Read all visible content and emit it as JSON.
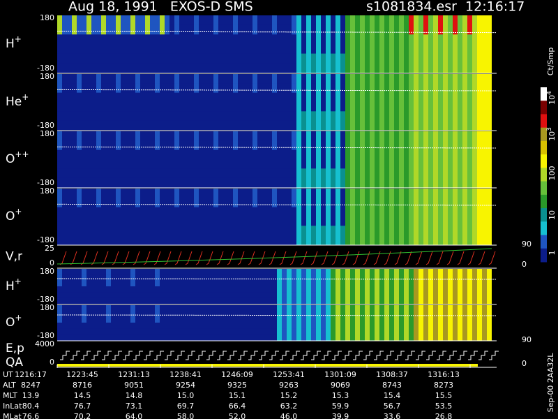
{
  "header": {
    "title": "Aug 18, 1991   EXOS-D SMS",
    "file": "s1081834.esr  12:16:17"
  },
  "panels": [
    {
      "label": "H",
      "superscript": "+",
      "ticks": [
        "180",
        "-180"
      ]
    },
    {
      "label": "He",
      "superscript": "+",
      "ticks": [
        "180",
        "-180"
      ]
    },
    {
      "label": "O",
      "superscript": "++",
      "ticks": [
        "180",
        "-180"
      ]
    },
    {
      "label": "O",
      "superscript": "+",
      "ticks": [
        "180",
        "-180"
      ]
    },
    {
      "label": "V,r",
      "ticks": [
        "25",
        "0"
      ],
      "right_ticks": [
        "90",
        "0"
      ]
    },
    {
      "label": "H",
      "superscript": "+",
      "ticks": [
        "180",
        "-180"
      ]
    },
    {
      "label": "O",
      "superscript": "+",
      "ticks": [
        "180",
        "-180"
      ]
    },
    {
      "label": "E,p",
      "label2": "QA",
      "ticks": [
        "4000",
        "0"
      ],
      "right_ticks": [
        "90",
        "0"
      ]
    }
  ],
  "colorbar": {
    "unit": "Ct/Smp",
    "labels": [
      {
        "base": "10",
        "exp": "4"
      },
      {
        "base": "10",
        "exp": "3"
      },
      "100",
      "10",
      "1"
    ]
  },
  "table": {
    "rows": [
      {
        "label": "UT",
        "values": [
          "1216:17",
          "1223:45",
          "1231:13",
          "1238:41",
          "1246:09",
          "1253:41",
          "1301:09",
          "1308:37",
          "1316:13"
        ]
      },
      {
        "label": "ALT",
        "values": [
          "8247",
          "8716",
          "9051",
          "9254",
          "9325",
          "9263",
          "9069",
          "8743",
          "8273"
        ]
      },
      {
        "label": "MLT",
        "values": [
          "13.9",
          "14.5",
          "14.8",
          "15.0",
          "15.1",
          "15.2",
          "15.3",
          "15.4",
          "15.5"
        ]
      },
      {
        "label": "InLat",
        "values": [
          "80.4",
          "76.7",
          "73.1",
          "69.7",
          "66.4",
          "63.2",
          "59.9",
          "56.7",
          "53.5"
        ]
      },
      {
        "label": "MLat",
        "values": [
          "76.6",
          "70.2",
          "64.0",
          "58.0",
          "52.0",
          "46.0",
          "39.9",
          "33.6",
          "26.8"
        ]
      }
    ]
  },
  "footer": "Sep-00 2AA32L"
}
